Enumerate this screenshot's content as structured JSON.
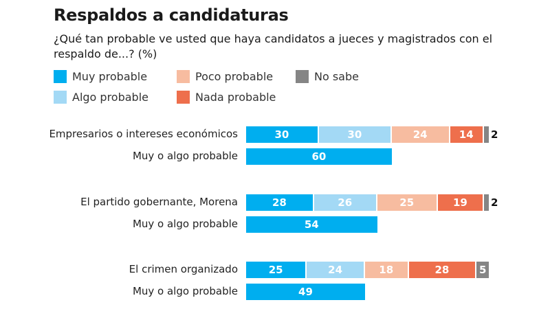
{
  "title": "Respaldos a candidaturas",
  "subtitle": "¿Qué tan probable ve usted que haya candidatos a jueces y magistrados con el respaldo de...? (%)",
  "colors": {
    "muy": "#00aeef",
    "algo": "#a3d9f5",
    "poco": "#f7bca0",
    "nada": "#ee6f4c",
    "nosabe": "#858585"
  },
  "chart_data": {
    "type": "bar",
    "orientation": "horizontal",
    "stacked": true,
    "title": "Respaldos a candidaturas",
    "subtitle": "¿Qué tan probable ve usted que haya candidatos a jueces y magistrados con el respaldo de...? (%)",
    "xlim": [
      0,
      100
    ],
    "legend": [
      {
        "key": "muy",
        "label": "Muy probable"
      },
      {
        "key": "algo",
        "label": "Algo probable"
      },
      {
        "key": "poco",
        "label": "Poco probable"
      },
      {
        "key": "nada",
        "label": "Nada probable"
      },
      {
        "key": "nosabe",
        "label": "No sabe"
      }
    ],
    "legend_position": "top-left",
    "groups": [
      {
        "category": "Empresarios o intereses económicos",
        "values": {
          "muy": 30,
          "algo": 30,
          "poco": 24,
          "nada": 14,
          "nosabe": 2
        },
        "summary_label": "Muy o algo probable",
        "summary_value": 60
      },
      {
        "category": "El partido gobernante, Morena",
        "values": {
          "muy": 28,
          "algo": 26,
          "poco": 25,
          "nada": 19,
          "nosabe": 2
        },
        "summary_label": "Muy o algo probable",
        "summary_value": 54
      },
      {
        "category": "El crimen organizado",
        "values": {
          "muy": 25,
          "algo": 24,
          "poco": 18,
          "nada": 28,
          "nosabe": 5
        },
        "summary_label": "Muy o algo probable",
        "summary_value": 49
      }
    ]
  }
}
